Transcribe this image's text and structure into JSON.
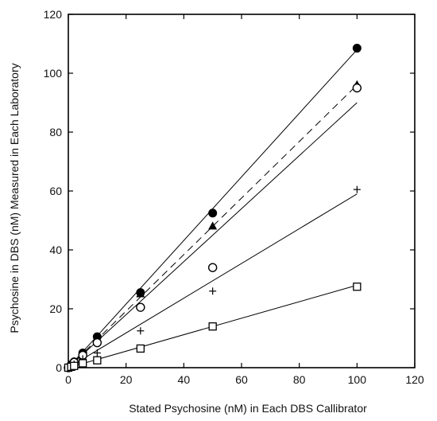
{
  "chart_data": {
    "type": "scatter",
    "title": "",
    "xlabel": "Stated Psychosine (nM) in Each DBS Callibrator",
    "ylabel": "Psychosine in DBS (nM) Measured in Each Laboratory",
    "xlim": [
      0,
      120
    ],
    "ylim": [
      0,
      120
    ],
    "xticks": [
      0,
      20,
      40,
      60,
      80,
      100,
      120
    ],
    "yticks": [
      0,
      20,
      40,
      60,
      80,
      100,
      120
    ],
    "grid": false,
    "series": [
      {
        "marker": "filled-circle",
        "x": [
          0,
          1,
          2,
          5,
          10,
          25,
          50,
          100
        ],
        "y": [
          0,
          1,
          2,
          5,
          10.5,
          25.5,
          52.5,
          108.5
        ],
        "fit": [
          [
            0,
            0
          ],
          [
            100,
            108
          ]
        ],
        "fit_style": "solid"
      },
      {
        "marker": "filled-triangle",
        "x": [
          0,
          1,
          2,
          5,
          10,
          25,
          50,
          100
        ],
        "y": [
          0,
          1,
          2,
          4.5,
          9.5,
          25,
          48,
          96
        ],
        "fit": [
          [
            0,
            0
          ],
          [
            100,
            96
          ]
        ],
        "fit_style": "dashed"
      },
      {
        "marker": "open-circle",
        "x": [
          0,
          1,
          2,
          5,
          10,
          25,
          50,
          100
        ],
        "y": [
          0,
          0.8,
          1.8,
          4.2,
          8.5,
          20.5,
          34,
          95
        ],
        "fit": [
          [
            0,
            0
          ],
          [
            100,
            90
          ]
        ],
        "fit_style": "solid"
      },
      {
        "marker": "plus",
        "x": [
          0,
          1,
          2,
          5,
          10,
          25,
          50,
          100
        ],
        "y": [
          0,
          0.6,
          1.2,
          3,
          5,
          12.5,
          26,
          60.5
        ],
        "fit": [
          [
            0,
            0
          ],
          [
            100,
            59
          ]
        ],
        "fit_style": "solid"
      },
      {
        "marker": "open-square",
        "x": [
          0,
          1,
          2,
          5,
          10,
          25,
          50,
          100
        ],
        "y": [
          0,
          0.3,
          0.6,
          1.5,
          2.5,
          6.5,
          14,
          27.5
        ],
        "fit": [
          [
            0,
            0
          ],
          [
            100,
            28
          ]
        ],
        "fit_style": "solid"
      }
    ]
  }
}
